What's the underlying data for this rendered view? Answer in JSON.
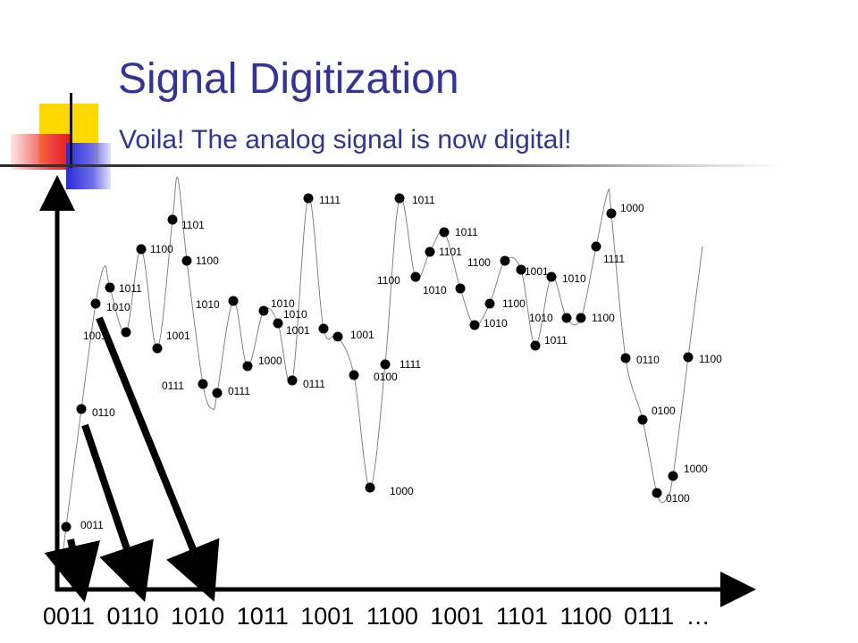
{
  "slide": {
    "title": "Signal Digitization",
    "subtitle": "Voila! The analog signal is now digital!",
    "bitstream": "0011  0110  1010  1011  1001  1100  1001  1101  1100  0111  …"
  },
  "samples": [
    {
      "code": "0011"
    },
    {
      "code": "0110"
    },
    {
      "code": "1010"
    },
    {
      "code": "1011"
    },
    {
      "code": "1001"
    },
    {
      "code": "1100"
    },
    {
      "code": "1001"
    },
    {
      "code": "1101"
    },
    {
      "code": "1100"
    },
    {
      "code": "0111"
    },
    {
      "code": "0111"
    },
    {
      "code": "1010"
    },
    {
      "code": "1000"
    },
    {
      "code": "1010"
    },
    {
      "code": "1010"
    },
    {
      "code": "0111"
    },
    {
      "code": "1111"
    },
    {
      "code": "1001"
    },
    {
      "code": "1001"
    },
    {
      "code": "0100"
    },
    {
      "code": "1000"
    },
    {
      "code": "1111"
    },
    {
      "code": "1011"
    },
    {
      "code": "1100"
    },
    {
      "code": "1101"
    },
    {
      "code": "1011"
    },
    {
      "code": "1010"
    },
    {
      "code": "1010"
    },
    {
      "code": "1100"
    },
    {
      "code": "1100"
    },
    {
      "code": "1001"
    },
    {
      "code": "1011"
    },
    {
      "code": "1010"
    },
    {
      "code": "1010"
    },
    {
      "code": "1100"
    },
    {
      "code": "1111"
    },
    {
      "code": "1000"
    },
    {
      "code": "0110"
    },
    {
      "code": "0100"
    },
    {
      "code": "0100"
    },
    {
      "code": "1000"
    },
    {
      "code": "1100"
    }
  ],
  "colors": {
    "title": "#33339a",
    "ink": "#000000"
  }
}
